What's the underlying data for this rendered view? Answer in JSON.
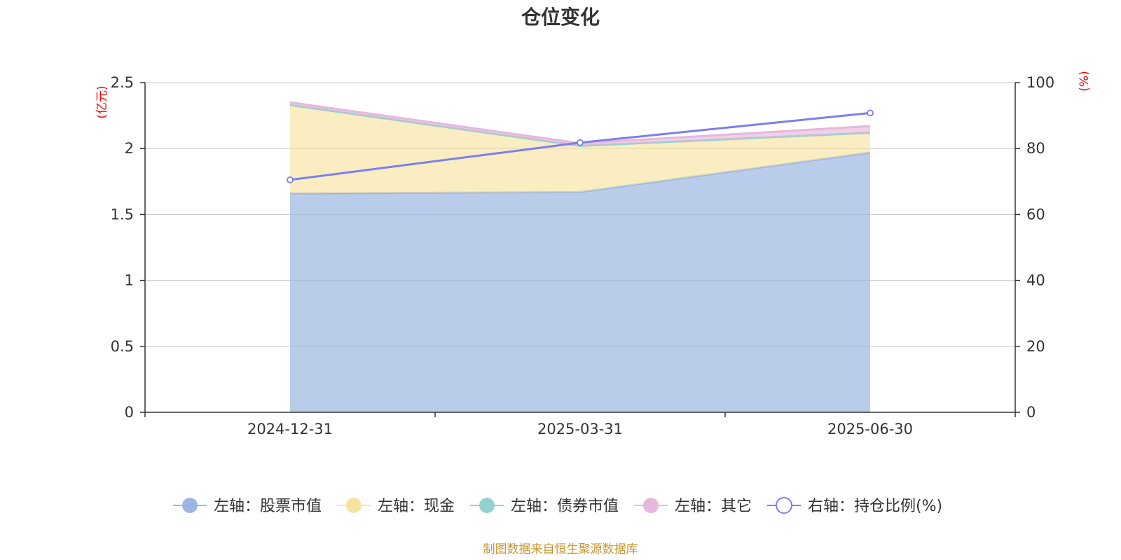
{
  "chart_data": {
    "type": "area",
    "title": "仓位变化",
    "categories": [
      "2024-12-31",
      "2025-03-31",
      "2025-06-30"
    ],
    "left_axis": {
      "unit": "(亿元)",
      "range": [
        0,
        2.5
      ],
      "ticks": [
        "0",
        "0.5",
        "1",
        "1.5",
        "2",
        "2.5"
      ]
    },
    "right_axis": {
      "unit": "(%)",
      "range": [
        0,
        100
      ],
      "ticks": [
        "0",
        "20",
        "40",
        "60",
        "80",
        "100"
      ]
    },
    "grid": true,
    "legend_position": "bottom",
    "series": [
      {
        "name": "左轴：股票市值",
        "axis": "left",
        "type": "area",
        "color": "#9bb7e1",
        "values": [
          1.66,
          1.67,
          1.97
        ]
      },
      {
        "name": "左轴：现金",
        "axis": "left",
        "type": "area",
        "color": "#f7e3a1",
        "values": [
          0.67,
          0.35,
          0.15
        ]
      },
      {
        "name": "左轴：债券市值",
        "axis": "left",
        "type": "area",
        "color": "#93d2d0",
        "values": [
          0,
          0,
          0
        ]
      },
      {
        "name": "左轴：其它",
        "axis": "left",
        "type": "area",
        "color": "#e7b7dc",
        "values": [
          0.02,
          0.02,
          0.05
        ]
      },
      {
        "name": "右轴：持仓比例(%)",
        "axis": "right",
        "type": "line",
        "color": "#7b7ff0",
        "values": [
          70.5,
          81.8,
          90.8
        ]
      }
    ],
    "source": "制图数据来自恒生聚源数据库"
  }
}
